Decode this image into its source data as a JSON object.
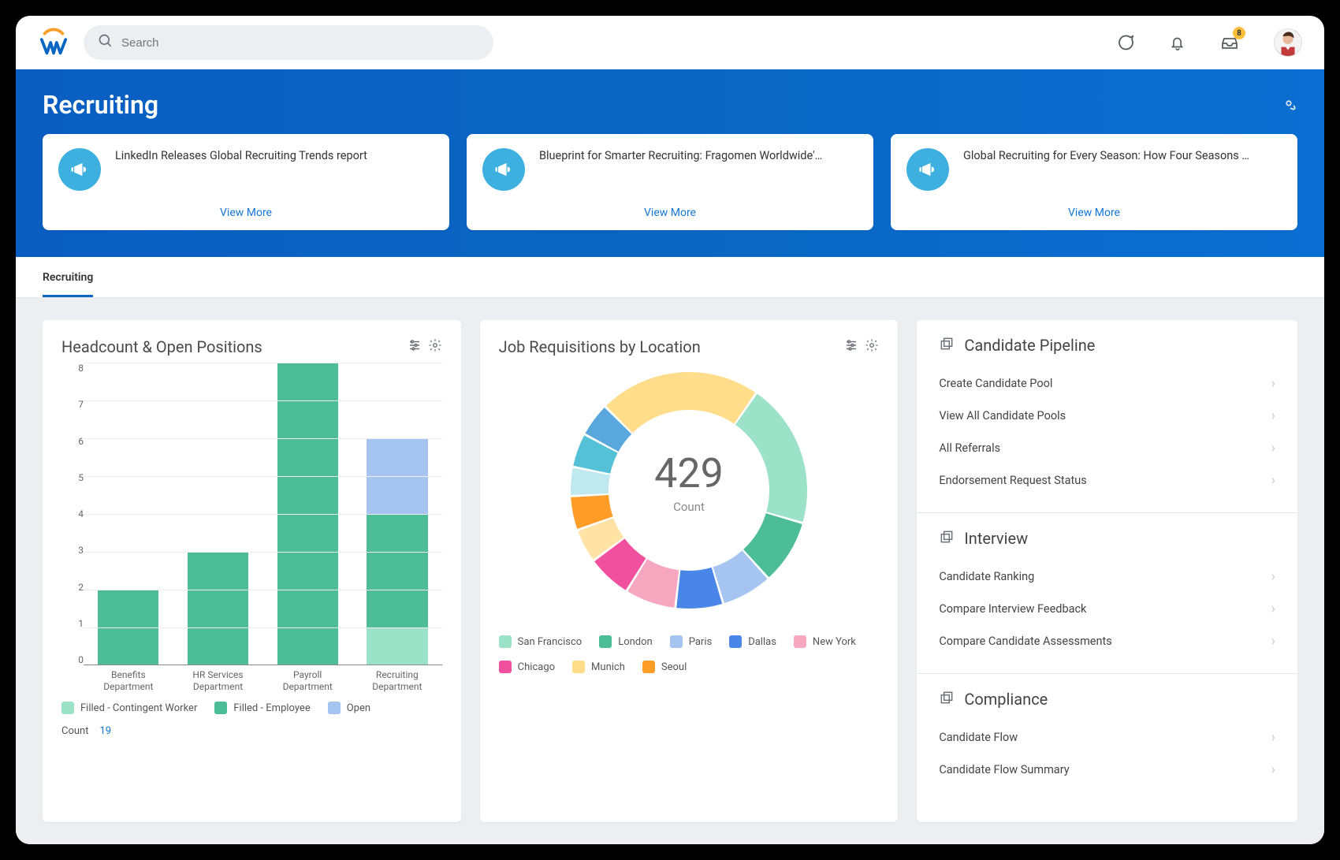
{
  "topbar": {
    "search_placeholder": "Search",
    "inbox_badge": "8"
  },
  "hero": {
    "title": "Recruiting"
  },
  "news": {
    "view_more": "View More",
    "icon_bg": "#3eb0e0",
    "cards": [
      {
        "title": "LinkedIn Releases Global Recruiting Trends report"
      },
      {
        "title": "Blueprint for Smarter Recruiting: Fragomen Worldwide'…"
      },
      {
        "title": "Global Recruiting for Every Season: How Four Seasons …"
      }
    ]
  },
  "tabs": {
    "active": "Recruiting"
  },
  "bar_chart": {
    "title": "Headcount & Open Positions",
    "ymax": 8,
    "yticks": [
      8,
      7,
      6,
      5,
      4,
      3,
      2,
      1,
      0
    ],
    "grid_color": "#eeeeee",
    "axis_color": "#888888",
    "categories": [
      {
        "label_line1": "Benefits",
        "label_line2": "Department",
        "segments": [
          {
            "series": "employee",
            "value": 2
          }
        ]
      },
      {
        "label_line1": "HR Services",
        "label_line2": "Department",
        "segments": [
          {
            "series": "employee",
            "value": 3
          }
        ]
      },
      {
        "label_line1": "Payroll",
        "label_line2": "Department",
        "segments": [
          {
            "series": "employee",
            "value": 8
          }
        ]
      },
      {
        "label_line1": "Recruiting",
        "label_line2": "Department",
        "segments": [
          {
            "series": "contingent",
            "value": 1
          },
          {
            "series": "employee",
            "value": 3
          },
          {
            "series": "open",
            "value": 2
          }
        ]
      }
    ],
    "series": {
      "contingent": {
        "label": "Filled - Contingent Worker",
        "color": "#9be2c8"
      },
      "employee": {
        "label": "Filled - Employee",
        "color": "#4cbd97"
      },
      "open": {
        "label": "Open",
        "color": "#a5c4ef"
      }
    },
    "count_label": "Count",
    "count_value": "19"
  },
  "donut": {
    "title": "Job Requisitions by Location",
    "center_value": "429",
    "center_label": "Count",
    "thickness": 48,
    "radius": 150,
    "start_angle": -135,
    "background": "#ffffff",
    "slices": [
      {
        "label": "Munich",
        "value": 95,
        "color": "#ffdd8a"
      },
      {
        "label": "San Francisco",
        "value": 85,
        "color": "#9be2c8"
      },
      {
        "label": "London",
        "value": 38,
        "color": "#4cbd97"
      },
      {
        "label": "Paris",
        "value": 30,
        "color": "#a5c4ef"
      },
      {
        "label": "Dallas",
        "value": 28,
        "color": "#4a86e8"
      },
      {
        "label": "New York",
        "value": 30,
        "color": "#f7a7c0"
      },
      {
        "label": "Chicago",
        "value": 26,
        "color": "#f0509d"
      },
      {
        "label": "(other1)",
        "value": 20,
        "color": "#ffe3a6"
      },
      {
        "label": "Seoul",
        "value": 20,
        "color": "#ff9d28"
      },
      {
        "label": "(other2)",
        "value": 17,
        "color": "#bfe9ef"
      },
      {
        "label": "(other3)",
        "value": 20,
        "color": "#55c1d6"
      },
      {
        "label": "(other4)",
        "value": 20,
        "color": "#5aa7de"
      }
    ],
    "legend": [
      {
        "label": "San Francisco",
        "color": "#9be2c8"
      },
      {
        "label": "London",
        "color": "#4cbd97"
      },
      {
        "label": "Paris",
        "color": "#a5c4ef"
      },
      {
        "label": "Dallas",
        "color": "#4a86e8"
      },
      {
        "label": "New York",
        "color": "#f7a7c0"
      },
      {
        "label": "Chicago",
        "color": "#f0509d"
      },
      {
        "label": "Munich",
        "color": "#ffdd8a"
      },
      {
        "label": "Seoul",
        "color": "#ff9d28"
      }
    ]
  },
  "right_panel": {
    "sections": [
      {
        "title": "Candidate Pipeline",
        "links": [
          "Create Candidate Pool",
          "View All Candidate Pools",
          "All Referrals",
          "Endorsement Request Status"
        ]
      },
      {
        "title": "Interview",
        "links": [
          "Candidate Ranking",
          "Compare Interview Feedback",
          "Compare Candidate Assessments"
        ]
      },
      {
        "title": "Compliance",
        "links": [
          "Candidate Flow",
          "Candidate Flow Summary"
        ]
      }
    ]
  }
}
